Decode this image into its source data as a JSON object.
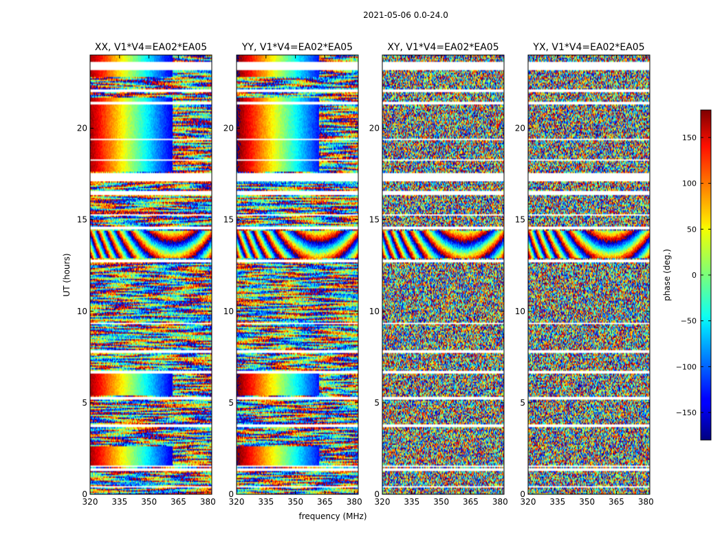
{
  "figure": {
    "suptitle": "2021-05-06 0.0-24.0",
    "xlabel": "frequency (MHz)",
    "ylabel": "UT (hours)"
  },
  "colorbar": {
    "label": "phase (deg.)",
    "ticks": [
      "150",
      "100",
      "50",
      "0",
      "−50",
      "−100",
      "−150"
    ],
    "tick_values": [
      150,
      100,
      50,
      0,
      -50,
      -100,
      -150
    ],
    "range": [
      -180,
      180
    ],
    "colormap": "jet"
  },
  "chart_data": [
    {
      "type": "heatmap",
      "title": "XX, V1*V4=EA02*EA05",
      "xlim": [
        320,
        382
      ],
      "ylim": [
        0,
        24
      ],
      "xticks": [
        "320",
        "335",
        "350",
        "365",
        "380"
      ],
      "yticks": [
        "0",
        "5",
        "10",
        "15",
        "20"
      ],
      "quantity": "phase (deg.)",
      "pattern": "coherent-parallel"
    },
    {
      "type": "heatmap",
      "title": "YY, V1*V4=EA02*EA05",
      "xlim": [
        320,
        382
      ],
      "ylim": [
        0,
        24
      ],
      "xticks": [
        "320",
        "335",
        "350",
        "365",
        "380"
      ],
      "yticks": [
        "0",
        "5",
        "10",
        "15",
        "20"
      ],
      "quantity": "phase (deg.)",
      "pattern": "coherent-parallel"
    },
    {
      "type": "heatmap",
      "title": "XY, V1*V4=EA02*EA05",
      "xlim": [
        320,
        382
      ],
      "ylim": [
        0,
        24
      ],
      "xticks": [
        "320",
        "335",
        "350",
        "365",
        "380"
      ],
      "yticks": [
        "0",
        "5",
        "10",
        "15",
        "20"
      ],
      "quantity": "phase (deg.)",
      "pattern": "cross-hand-noise"
    },
    {
      "type": "heatmap",
      "title": "YX, V1*V4=EA02*EA05",
      "xlim": [
        320,
        382
      ],
      "ylim": [
        0,
        24
      ],
      "xticks": [
        "320",
        "335",
        "350",
        "365",
        "380"
      ],
      "yticks": [
        "0",
        "5",
        "10",
        "15",
        "20"
      ],
      "quantity": "phase (deg.)",
      "pattern": "cross-hand-noise"
    }
  ]
}
